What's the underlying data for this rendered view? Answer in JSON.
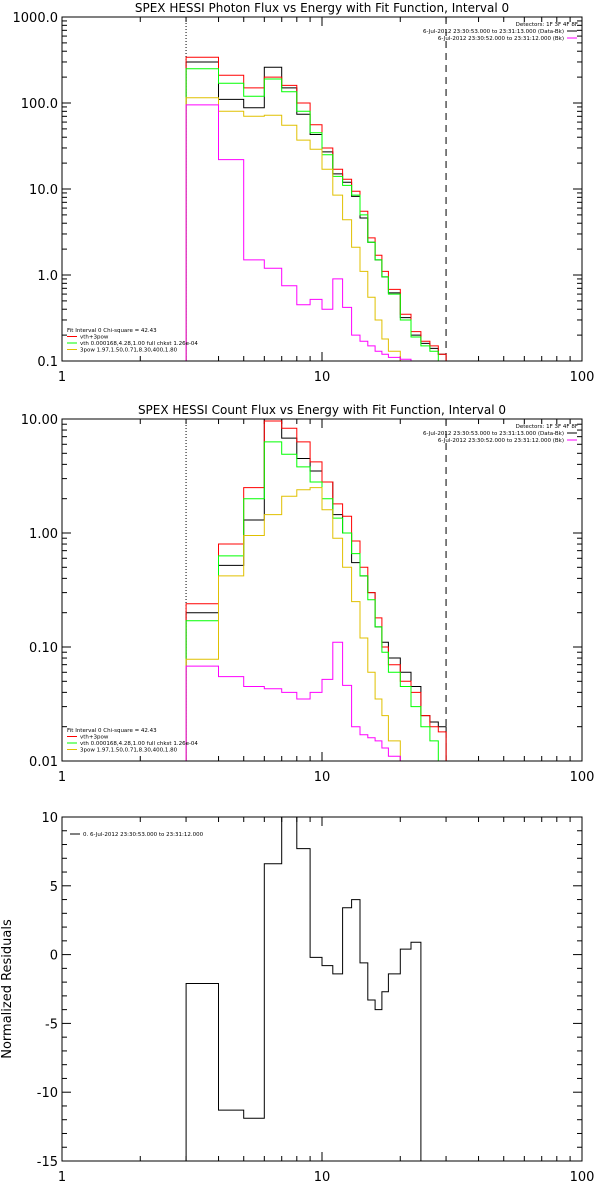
{
  "colors": {
    "black": "#000000",
    "red": "#ff0000",
    "green": "#00ff00",
    "yellow": "#e0c000",
    "magenta": "#ff00ff",
    "background": "#ffffff"
  },
  "chart_data": [
    {
      "type": "line",
      "title": "SPEX HESSI Photon Flux vs Energy with Fit Function, Interval 0",
      "xlabel": "",
      "ylabel": "",
      "xscale": "log",
      "yscale": "log",
      "xlim": [
        1,
        100
      ],
      "ylim": [
        0.1,
        1000
      ],
      "xticks": [
        "1",
        "10",
        "100"
      ],
      "yticks": [
        "1000.0",
        "100.0",
        "10.0",
        "1.0",
        "0.1"
      ],
      "vlines": [
        {
          "x": 3,
          "style": "dotted"
        },
        {
          "x": 30,
          "style": "dashed"
        }
      ],
      "legend_top": [
        "Detectors: 1F 3F 4F 8F",
        "6-Jul-2012 23:30:53.000 to 23:31:13.000 (Data-Bk)",
        "6-Jul-2012 23:30:52.000 to 23:31:12.000 (Bk)"
      ],
      "legend_bottom": [
        "Fit Interval  0   Chi-square = 42.43",
        "vth+3pow",
        "vth 0.000168,4.28,1.00   full chkst 1.26e-04",
        "3pow 1.97,1.50,0.71,8.30,400,1.80"
      ],
      "edges": [
        3,
        4,
        5,
        6,
        7,
        8,
        9,
        10,
        11,
        12,
        13,
        14,
        15,
        16,
        17,
        18,
        20,
        22,
        24,
        26,
        28,
        30
      ],
      "series": [
        {
          "color": "black",
          "values": [
            300,
            110,
            88,
            260,
            150,
            74,
            43,
            27,
            15,
            12,
            8.2,
            4.6,
            2.4,
            1.5,
            0.95,
            0.62,
            0.32,
            0.2,
            0.16,
            0.14,
            0.12
          ]
        },
        {
          "color": "red",
          "values": [
            340,
            210,
            150,
            200,
            160,
            100,
            56,
            30,
            17,
            13,
            9.4,
            5.5,
            2.7,
            1.7,
            1.1,
            0.68,
            0.35,
            0.22,
            0.17,
            0.15,
            0.12
          ]
        },
        {
          "color": "green",
          "values": [
            250,
            170,
            120,
            190,
            135,
            80,
            45,
            25,
            14,
            11,
            8.5,
            5,
            2.4,
            1.5,
            0.95,
            0.6,
            0.3,
            0.19,
            0.15,
            0.13,
            0.1
          ]
        },
        {
          "color": "yellow",
          "values": [
            115,
            80,
            70,
            72,
            55,
            37,
            29,
            17,
            8.5,
            4.4,
            2.1,
            1.1,
            0.55,
            0.3,
            0.18,
            0.13,
            0.1
          ]
        },
        {
          "color": "magenta",
          "values": [
            95,
            22,
            1.5,
            1.2,
            0.75,
            0.45,
            0.52,
            0.4,
            0.9,
            0.42,
            0.2,
            0.17,
            0.15,
            0.13,
            0.12,
            0.11,
            0.105,
            0.1
          ]
        }
      ]
    },
    {
      "type": "line",
      "title": "SPEX HESSI Count Flux vs Energy with Fit Function, Interval 0",
      "xlabel": "",
      "ylabel": "",
      "xscale": "log",
      "yscale": "log",
      "xlim": [
        1,
        100
      ],
      "ylim": [
        0.01,
        10
      ],
      "xticks": [
        "1",
        "10",
        "100"
      ],
      "yticks": [
        "10.00",
        "1.00",
        "0.10",
        "0.01"
      ],
      "vlines": [
        {
          "x": 3,
          "style": "dotted"
        },
        {
          "x": 30,
          "style": "dashed"
        }
      ],
      "legend_top": [
        "Detectors: 1F 3F 4F 8F",
        "6-Jul-2012 23:30:53.000 to 23:31:13.000 (Data-Bk)",
        "6-Jul-2012 23:30:52.000 to 23:31:12.000 (Bk)"
      ],
      "legend_bottom": [
        "Fit Interval  0   Chi-square = 42.43",
        "vth+3pow",
        "vth 0.000168,4.28,1.00   full chkst 1.26e-04",
        "3pow 1.97,1.50,0.71,8.30,400,1.80"
      ],
      "edges": [
        3,
        4,
        5,
        6,
        7,
        8,
        9,
        10,
        11,
        12,
        13,
        14,
        15,
        16,
        17,
        18,
        20,
        22,
        24,
        26,
        28,
        30
      ],
      "series": [
        {
          "color": "black",
          "values": [
            0.2,
            0.52,
            1.3,
            10.5,
            6.8,
            4.5,
            3.5,
            2.8,
            1.45,
            1.0,
            0.55,
            0.42,
            0.3,
            0.15,
            0.11,
            0.08,
            0.06,
            0.045,
            0.025,
            0.022,
            0.02
          ]
        },
        {
          "color": "red",
          "values": [
            0.24,
            0.8,
            2.5,
            9.6,
            8.3,
            6.3,
            4.2,
            2.8,
            1.8,
            1.4,
            0.85,
            0.5,
            0.3,
            0.18,
            0.1,
            0.07,
            0.05,
            0.04,
            0.025,
            0.02,
            0.018
          ]
        },
        {
          "color": "green",
          "values": [
            0.17,
            0.63,
            2.0,
            6.3,
            4.9,
            3.8,
            2.8,
            2.0,
            1.35,
            1.0,
            0.66,
            0.42,
            0.26,
            0.15,
            0.09,
            0.06,
            0.045,
            0.03,
            0.02,
            0.015,
            0.01
          ]
        },
        {
          "color": "yellow",
          "values": [
            0.078,
            0.42,
            0.95,
            1.45,
            2.1,
            2.4,
            2.5,
            1.6,
            0.9,
            0.5,
            0.25,
            0.12,
            0.06,
            0.035,
            0.025,
            0.015,
            0.01
          ]
        },
        {
          "color": "magenta",
          "values": [
            0.068,
            0.055,
            0.045,
            0.043,
            0.04,
            0.035,
            0.04,
            0.052,
            0.11,
            0.046,
            0.02,
            0.017,
            0.016,
            0.015,
            0.013,
            0.011,
            0.01
          ]
        }
      ]
    },
    {
      "type": "line",
      "title": "",
      "xlabel": "",
      "ylabel": "Normalized Residuals",
      "xscale": "log",
      "yscale": "linear",
      "xlim": [
        1,
        100
      ],
      "ylim": [
        -15,
        10
      ],
      "xticks": [
        "1",
        "10",
        "100"
      ],
      "yticks": [
        "10",
        "5",
        "0",
        "-5",
        "-10",
        "-15"
      ],
      "legend": [
        "0.  6-Jul-2012 23:30:53.000 to 23:31:12.000"
      ],
      "edges": [
        3,
        4,
        5,
        6,
        7,
        8,
        9,
        10,
        11,
        12,
        13,
        14,
        15,
        16,
        17,
        18,
        20,
        22,
        24,
        26,
        28,
        30
      ],
      "series": [
        {
          "color": "black",
          "values": [
            -2.1,
            -11.3,
            -11.9,
            6.6,
            10.0,
            7.7,
            -0.2,
            -0.8,
            -1.4,
            3.4,
            4.0,
            -0.6,
            -3.3,
            -4.0,
            -2.7,
            -1.4,
            0.4,
            0.9
          ]
        }
      ]
    }
  ]
}
